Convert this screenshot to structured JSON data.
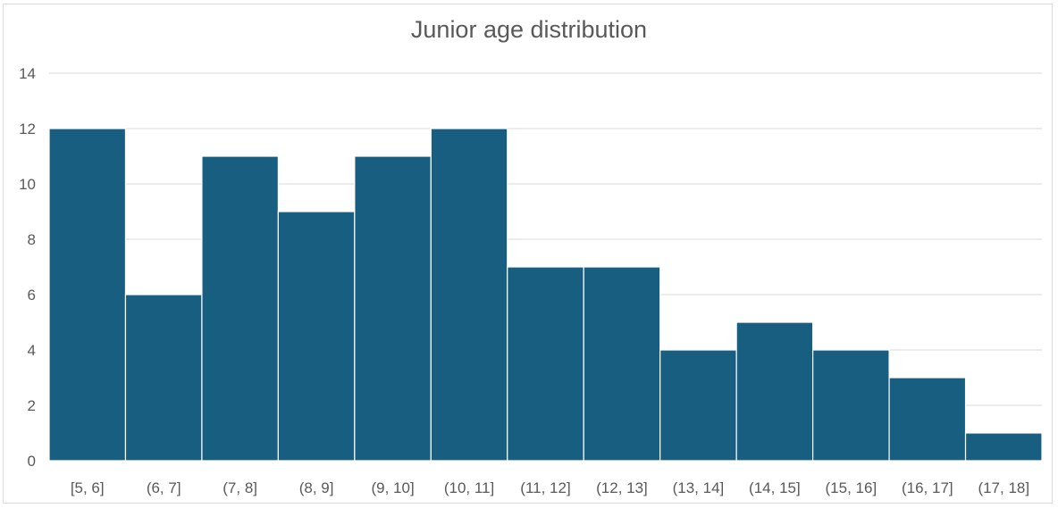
{
  "chart_data": {
    "type": "bar",
    "title": "Junior age distribution",
    "xlabel": "",
    "ylabel": "",
    "categories": [
      "[5, 6]",
      "(6, 7]",
      "(7, 8]",
      "(8, 9]",
      "(9, 10]",
      "(10, 11]",
      "(11, 12]",
      "(12, 13]",
      "(13, 14]",
      "(14, 15]",
      "(15, 16]",
      "(16, 17]",
      "(17, 18]"
    ],
    "values": [
      12,
      6,
      11,
      9,
      11,
      12,
      7,
      7,
      4,
      5,
      4,
      3,
      1
    ],
    "ylim": [
      0,
      14
    ],
    "yticks": [
      0,
      2,
      4,
      6,
      8,
      10,
      12,
      14
    ],
    "grid": true,
    "legend": "none",
    "bar_color": "#175e80",
    "bar_border_color": "#ffffff",
    "gridline_color": "#d9d9d9",
    "text_color": "#595959"
  }
}
